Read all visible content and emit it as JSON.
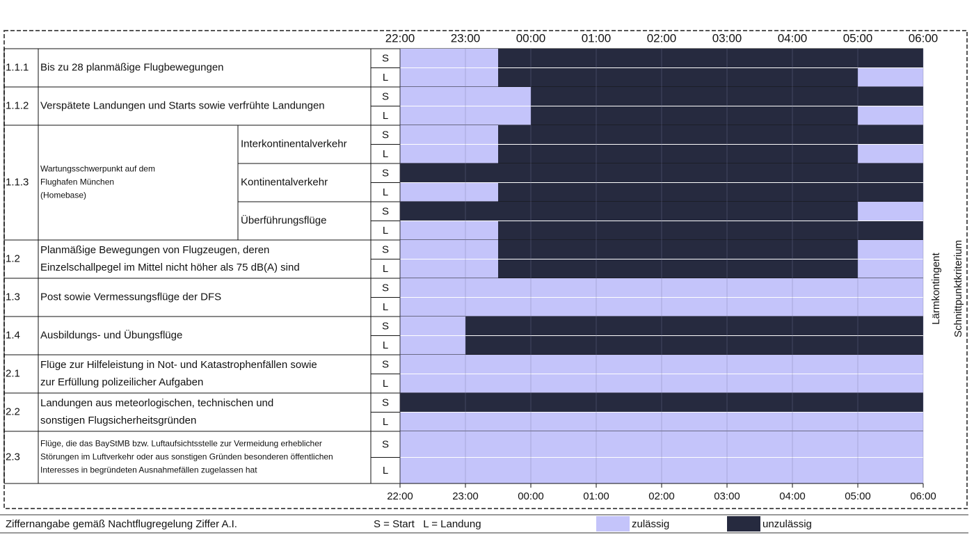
{
  "chart_data": {
    "type": "timeline",
    "xlim": [
      22,
      30
    ],
    "xticks": [
      {
        "value": 22,
        "label": "22:00"
      },
      {
        "value": 23,
        "label": "23:00"
      },
      {
        "value": 24,
        "label": "00:00"
      },
      {
        "value": 25,
        "label": "01:00"
      },
      {
        "value": 26,
        "label": "02:00"
      },
      {
        "value": 27,
        "label": "03:00"
      },
      {
        "value": 28,
        "label": "04:00"
      },
      {
        "value": 29,
        "label": "05:00"
      },
      {
        "value": 30,
        "label": "06:00"
      }
    ],
    "grid": true,
    "rows": [
      {
        "code": "1.1.1",
        "label": [
          "Bis zu 28 planmäßige Flugbewegungen"
        ],
        "parts": [
          {
            "tracks": [
              {
                "name": "S",
                "denied": [
                  [
                    23.5,
                    30
                  ]
                ]
              },
              {
                "name": "L",
                "denied": [
                  [
                    23.5,
                    29
                  ]
                ]
              }
            ]
          }
        ]
      },
      {
        "code": "1.1.2",
        "label": [
          "Verspätete Landungen und Starts sowie verfrühte Landungen"
        ],
        "parts": [
          {
            "tracks": [
              {
                "name": "S",
                "denied": [
                  [
                    24,
                    30
                  ]
                ]
              },
              {
                "name": "L",
                "denied": [
                  [
                    24,
                    29
                  ]
                ]
              }
            ]
          }
        ]
      },
      {
        "code": "1.1.3",
        "label": [
          "Wartungsschwerpunkt auf dem",
          "Flughafen München",
          "(Homebase)"
        ],
        "parts": [
          {
            "sublabel": "Interkontinentalverkehr",
            "tracks": [
              {
                "name": "S",
                "denied": [
                  [
                    23.5,
                    30
                  ]
                ]
              },
              {
                "name": "L",
                "denied": [
                  [
                    23.5,
                    29
                  ]
                ]
              }
            ]
          },
          {
            "sublabel": "Kontinentalverkehr",
            "tracks": [
              {
                "name": "S",
                "denied": [
                  [
                    22,
                    30
                  ]
                ]
              },
              {
                "name": "L",
                "denied": [
                  [
                    23.5,
                    30
                  ]
                ]
              }
            ]
          },
          {
            "sublabel": "Überführungsflüge",
            "tracks": [
              {
                "name": "S",
                "denied": [
                  [
                    22,
                    29
                  ]
                ]
              },
              {
                "name": "L",
                "denied": [
                  [
                    23.5,
                    30
                  ]
                ]
              }
            ]
          }
        ]
      },
      {
        "code": "1.2",
        "label": [
          "Planmäßige Bewegungen von Flugzeugen, deren",
          "Einzelschallpegel im Mittel nicht höher als 75 dB(A) sind"
        ],
        "parts": [
          {
            "tracks": [
              {
                "name": "S",
                "denied": [
                  [
                    23.5,
                    29
                  ]
                ]
              },
              {
                "name": "L",
                "denied": [
                  [
                    23.5,
                    29
                  ]
                ]
              }
            ]
          }
        ]
      },
      {
        "code": "1.3",
        "label": [
          "Post sowie Vermessungsflüge der DFS"
        ],
        "parts": [
          {
            "tracks": [
              {
                "name": "S",
                "denied": []
              },
              {
                "name": "L",
                "denied": []
              }
            ]
          }
        ]
      },
      {
        "code": "1.4",
        "label": [
          "Ausbildungs- und Übungsflüge"
        ],
        "parts": [
          {
            "tracks": [
              {
                "name": "S",
                "denied": [
                  [
                    23,
                    30
                  ]
                ]
              },
              {
                "name": "L",
                "denied": [
                  [
                    23,
                    30
                  ]
                ]
              }
            ]
          }
        ]
      },
      {
        "code": "2.1",
        "label": [
          "Flüge zur Hilfeleistung in Not- und Katastrophenfällen sowie",
          "zur Erfüllung polizeilicher Aufgaben"
        ],
        "parts": [
          {
            "tracks": [
              {
                "name": "S",
                "denied": []
              },
              {
                "name": "L",
                "denied": []
              }
            ]
          }
        ]
      },
      {
        "code": "2.2",
        "label": [
          "Landungen aus meteorlogischen, technischen und",
          "sonstigen Flugsicherheitsgründen"
        ],
        "parts": [
          {
            "tracks": [
              {
                "name": "S",
                "denied": [
                  [
                    22,
                    30
                  ]
                ]
              },
              {
                "name": "L",
                "denied": []
              }
            ]
          }
        ]
      },
      {
        "code": "2.3",
        "label": [
          "Flüge, die das BayStMB bzw. Luftaufsichtsstelle zur Vermeidung erheblicher",
          "Störungen im Luftverkehr oder aus sonstigen Gründen besonderen öffentlichen",
          "Interesses in begründeten Ausnahmefällen zugelassen hat"
        ],
        "parts": [
          {
            "tracks": [
              {
                "name": "S",
                "denied": []
              },
              {
                "name": "L",
                "denied": []
              }
            ]
          }
        ]
      }
    ],
    "side_labels": [
      "Lärmkontingent",
      "Schnittpunktkriterium"
    ],
    "legend": {
      "note": "Ziffernangabe gemäß Nachtflugregelung Ziffer A.I.",
      "key": "S = Start   L = Landung",
      "allowed": {
        "label": "zulässig",
        "color": "#c4c4fa"
      },
      "denied": {
        "label": "unzulässig",
        "color": "#262a3f"
      }
    }
  }
}
